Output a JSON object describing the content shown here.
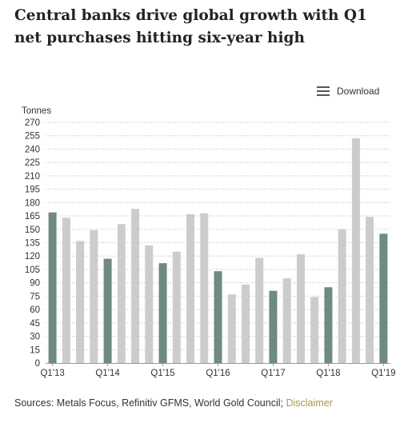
{
  "title": "Central banks drive global growth with Q1 net purchases hitting six-year high",
  "toolbar": {
    "download_label": "Download",
    "menu_icon": "hamburger-menu-icon"
  },
  "source": {
    "text": "Sources: Metals Focus, Refinitiv GFMS, World Gold Council; ",
    "disclaimer_label": "Disclaimer"
  },
  "colors": {
    "highlight": "#6e8b7d",
    "base": "#cccccc",
    "grid": "#bbbbbb",
    "disclaimer": "#a29a4a"
  },
  "chart_data": {
    "type": "bar",
    "ylabel": "Tonnes",
    "ylim": [
      0,
      270
    ],
    "yticks": [
      0,
      15,
      30,
      45,
      60,
      75,
      90,
      105,
      120,
      135,
      150,
      165,
      180,
      195,
      210,
      225,
      240,
      255,
      270
    ],
    "grid": true,
    "categories": [
      "Q1'13",
      "Q2'13",
      "Q3'13",
      "Q4'13",
      "Q1'14",
      "Q2'14",
      "Q3'14",
      "Q4'14",
      "Q1'15",
      "Q2'15",
      "Q3'15",
      "Q4'15",
      "Q1'16",
      "Q2'16",
      "Q3'16",
      "Q4'16",
      "Q1'17",
      "Q2'17",
      "Q3'17",
      "Q4'17",
      "Q1'18",
      "Q2'18",
      "Q3'18",
      "Q4'18",
      "Q1'19"
    ],
    "xtick_labels": [
      "Q1'13",
      "Q1'14",
      "Q1'15",
      "Q1'16",
      "Q1'17",
      "Q1'18",
      "Q1'19"
    ],
    "values": [
      169,
      163,
      137,
      149,
      117,
      156,
      173,
      132,
      112,
      125,
      167,
      168,
      103,
      77,
      88,
      118,
      81,
      95,
      122,
      74,
      85,
      150,
      252,
      164,
      145
    ],
    "highlight_quarter": "Q1"
  }
}
